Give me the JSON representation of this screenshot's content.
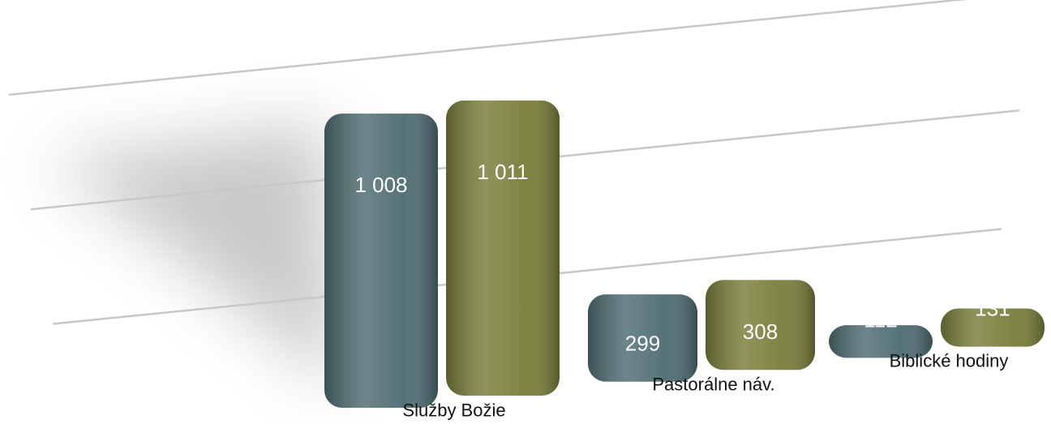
{
  "chart_data": {
    "type": "bar",
    "categories": [
      "Služby Božie",
      "Pastorálne náv.",
      "Biblické hodiny"
    ],
    "series": [
      {
        "color": "#4d6b71",
        "values": [
          1008,
          299,
          112
        ],
        "value_labels": [
          "1 008",
          "299",
          "112"
        ]
      },
      {
        "color": "#787d38",
        "values": [
          1011,
          308,
          131
        ],
        "value_labels": [
          "1 011",
          "308",
          "131"
        ]
      }
    ],
    "ylim": [
      0,
      1200
    ],
    "yticks": [
      400,
      800,
      1200
    ],
    "grid": true
  }
}
